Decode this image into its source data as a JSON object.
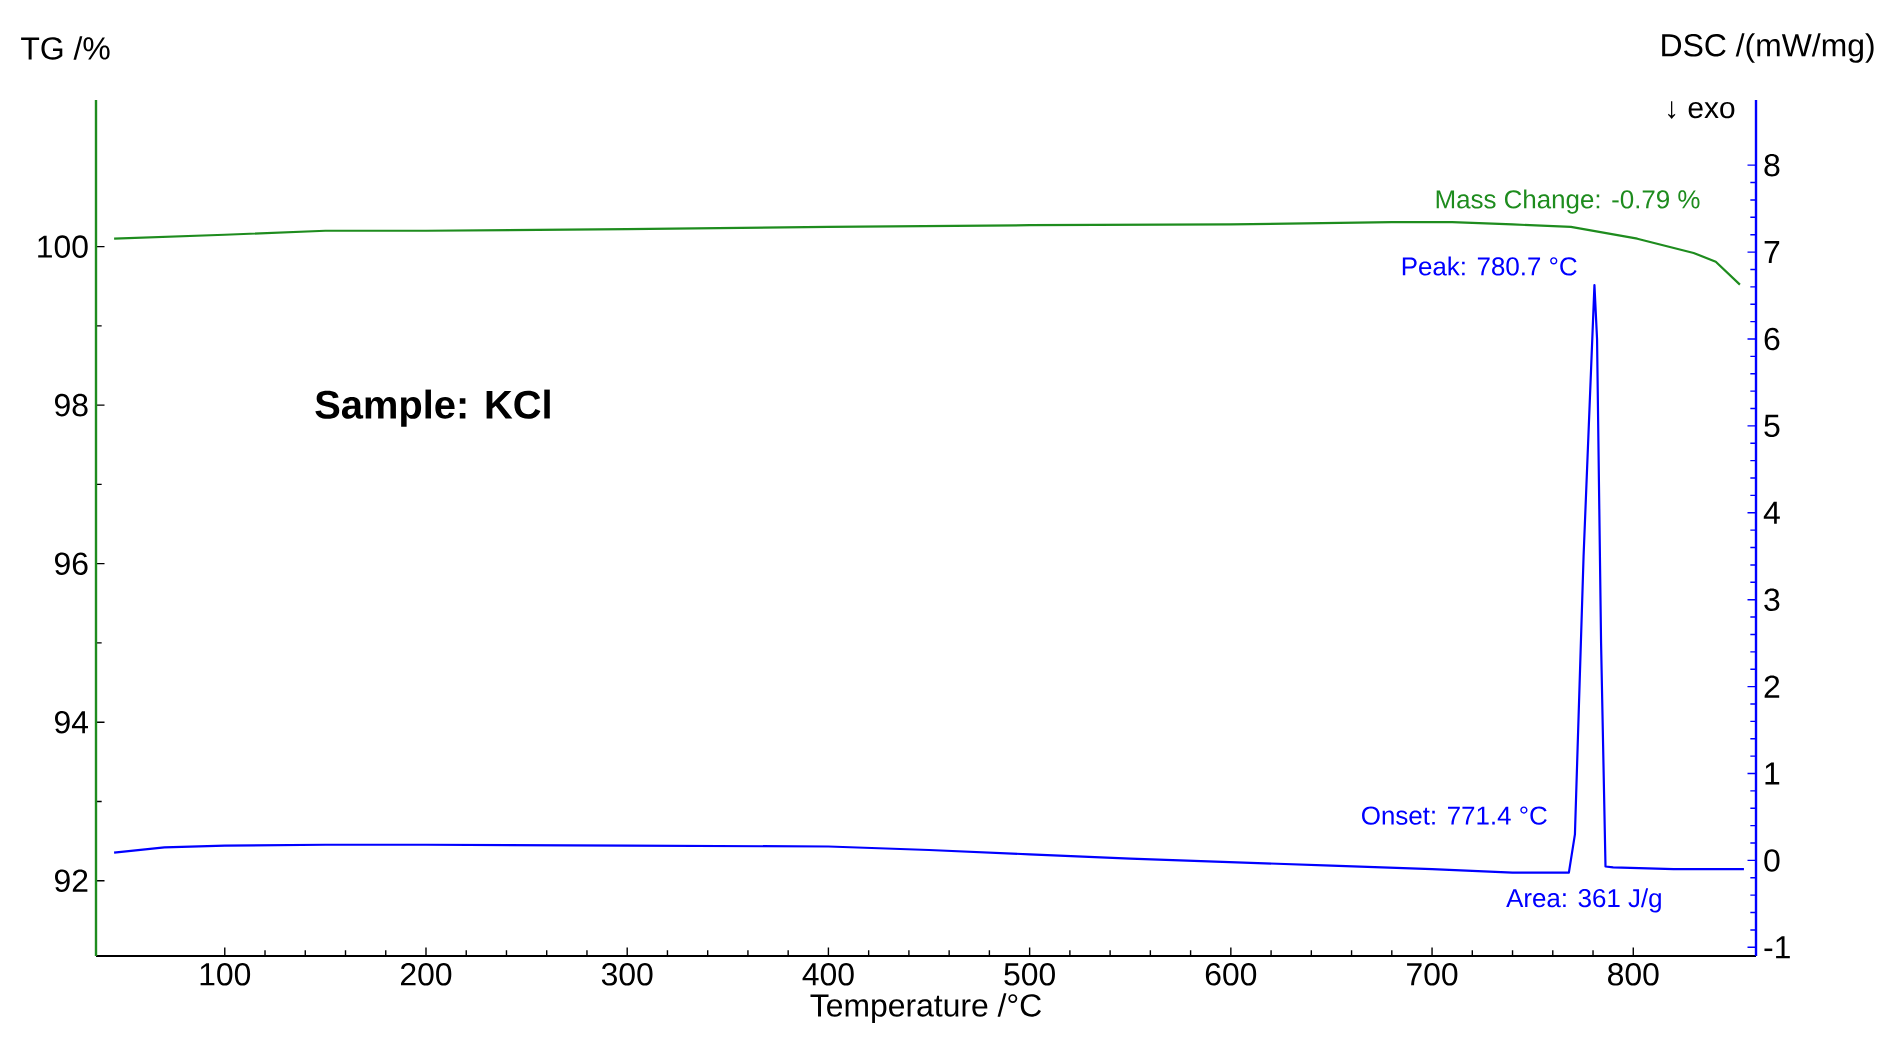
{
  "chart_data": {
    "type": "line",
    "xlabel": "Temperature /°C",
    "ylabel": "TG /%",
    "y2label": "DSC /(mW/mg)",
    "xlim": [
      36,
      861
    ],
    "xticks": [
      100,
      200,
      300,
      400,
      500,
      600,
      700,
      800
    ],
    "ylim": [
      91.05,
      101.85
    ],
    "yticks": [
      92,
      94,
      96,
      98,
      100
    ],
    "y2lim": [
      -1.1,
      8.75
    ],
    "y2ticks": [
      -1,
      0,
      1,
      2,
      3,
      4,
      5,
      6,
      7,
      8
    ],
    "series": [
      {
        "color": "#1e8c1e",
        "x": [
          45,
          100,
          150,
          200,
          300,
          400,
          500,
          600,
          680,
          710,
          740,
          769,
          802,
          830,
          841,
          853
        ],
        "values": [
          100.1,
          100.15,
          100.2,
          100.2,
          100.22,
          100.25,
          100.27,
          100.28,
          100.31,
          100.31,
          100.28,
          100.25,
          100.1,
          99.92,
          99.81,
          99.52
        ]
      },
      {
        "color": "#0000ff",
        "axis": "y2",
        "x": [
          45,
          70,
          100,
          150,
          200,
          300,
          400,
          450,
          500,
          550,
          600,
          650,
          700,
          740,
          768,
          771,
          775.3,
          780.7,
          782,
          784,
          786.2,
          790,
          820,
          855
        ],
        "values": [
          0.09,
          0.15,
          0.17,
          0.18,
          0.18,
          0.17,
          0.16,
          0.12,
          0.07,
          0.02,
          -0.02,
          -0.06,
          -0.1,
          -0.14,
          -0.14,
          0.3,
          3.5,
          6.62,
          6.0,
          2.5,
          -0.07,
          -0.08,
          -0.1,
          -0.1
        ]
      }
    ],
    "annotations": [
      {
        "text": "Mass Change: -0.79 %",
        "x": 710,
        "y": 100.31
      },
      "Peak: 780.7 °C",
      "Onset: 771.4 °C",
      "Area: 361 J/g",
      "Sample: KCl",
      "↓ exo"
    ]
  }
}
